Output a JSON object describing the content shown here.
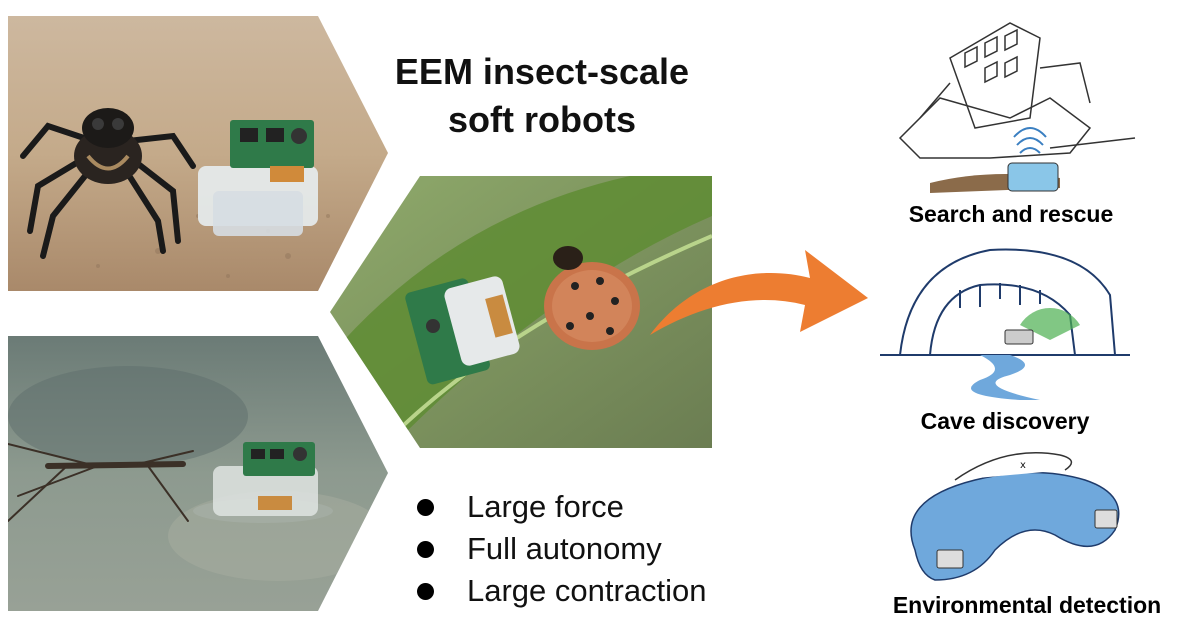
{
  "title": {
    "line1": "EEM insect-scale",
    "line2": "soft robots"
  },
  "features": [
    {
      "label": "Large force"
    },
    {
      "label": "Full autonomy"
    },
    {
      "label": "Large contraction"
    }
  ],
  "applications": [
    {
      "label": "Search and rescue"
    },
    {
      "label": "Cave discovery"
    },
    {
      "label": "Environmental detection"
    }
  ],
  "colors": {
    "arrow": "#ed7d31",
    "water": "#6fa8dc",
    "radar": "#4caf50"
  },
  "icons": [
    "spider-icon",
    "robot-icon",
    "water-strider-icon",
    "beetle-larva-icon",
    "arrow-icon",
    "building-icon",
    "cave-icon",
    "river-icon"
  ]
}
